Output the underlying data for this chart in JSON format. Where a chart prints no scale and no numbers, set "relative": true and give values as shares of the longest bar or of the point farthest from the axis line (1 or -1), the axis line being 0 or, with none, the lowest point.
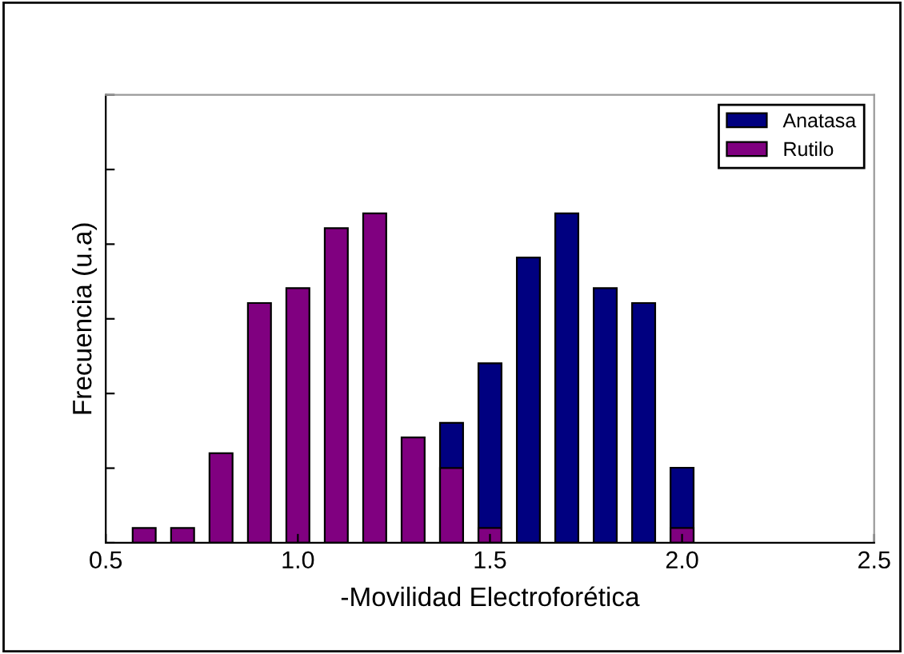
{
  "chart_data": {
    "type": "bar",
    "xlabel": "-Movilidad Electroforética",
    "ylabel": "Frecuencia (u.a)",
    "relative": true,
    "xlim": [
      0.5,
      2.5
    ],
    "xticks": [
      0.5,
      {
        "value": 1.0,
        "label": "1.0"
      },
      1.5,
      {
        "value": 2.0,
        "label": "2.0"
      },
      2.5
    ],
    "grid": false,
    "legend": "top right",
    "tick_labels": "x",
    "series": [
      {
        "name": "Anatasa",
        "color": "#000080",
        "x": [
          1.4,
          1.5,
          1.6,
          1.7,
          1.8,
          1.9,
          2.0
        ],
        "values": [
          0.364,
          0.545,
          0.866,
          1.0,
          0.773,
          0.728,
          0.228
        ]
      },
      {
        "name": "Rutilo",
        "color": "#800080",
        "x": [
          0.6,
          0.7,
          0.8,
          0.9,
          1.0,
          1.1,
          1.2,
          1.3,
          1.4,
          1.5,
          2.0
        ],
        "values": [
          0.045,
          0.045,
          0.272,
          0.728,
          0.773,
          0.955,
          1.0,
          0.32,
          0.227,
          0.045,
          0.045
        ]
      }
    ]
  }
}
